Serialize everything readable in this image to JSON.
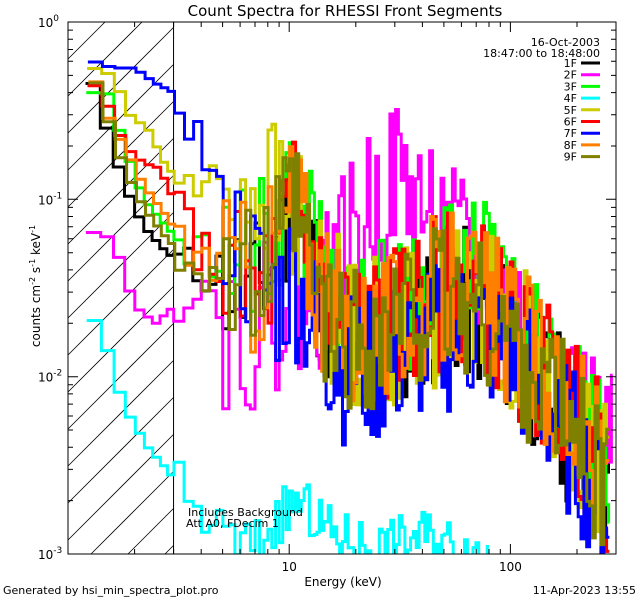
{
  "chart_data": {
    "type": "line",
    "title": "Count Spectra for RHESSI Front Segments",
    "xlabel": "Energy (keV)",
    "ylabel_parts": [
      "counts cm",
      "-2",
      " s",
      "-1",
      " keV",
      "-1"
    ],
    "xscale": "log",
    "yscale": "log",
    "xlim": [
      1.0,
      300.0
    ],
    "ylim": [
      0.001,
      1.0
    ],
    "x_ticks": [
      {
        "value": 10,
        "label": "10"
      },
      {
        "value": 100,
        "label": "100"
      }
    ],
    "y_ticks": [
      {
        "value": 0.001,
        "base": "10",
        "exp": "-3"
      },
      {
        "value": 0.01,
        "base": "10",
        "exp": "-2"
      },
      {
        "value": 0.1,
        "base": "10",
        "exp": "-1"
      },
      {
        "value": 1.0,
        "base": "10",
        "exp": "0"
      }
    ],
    "attenuator_shade_max_kev": 3.0,
    "date": "16-Oct-2003",
    "time_range": "18:47:00 to 18:48:00",
    "annotations": [
      "Includes Background",
      "Att A0, FDecim 1"
    ],
    "legend_position": "top-right",
    "series": [
      {
        "name": "1F",
        "color": "#000000",
        "seed": 11,
        "anchors": [
          [
            1.3,
            0.45
          ],
          [
            1.5,
            0.25
          ],
          [
            1.8,
            0.12
          ],
          [
            2.2,
            0.07
          ],
          [
            2.8,
            0.05
          ],
          [
            3.5,
            0.04
          ],
          [
            5,
            0.04
          ],
          [
            7,
            0.03
          ],
          [
            9,
            0.06
          ],
          [
            10.5,
            0.11
          ],
          [
            12,
            0.06
          ],
          [
            15,
            0.025
          ],
          [
            20,
            0.02
          ],
          [
            28,
            0.02
          ],
          [
            40,
            0.025
          ],
          [
            55,
            0.03
          ],
          [
            75,
            0.025
          ],
          [
            100,
            0.018
          ],
          [
            140,
            0.01
          ],
          [
            200,
            0.005
          ],
          [
            280,
            0.0025
          ]
        ]
      },
      {
        "name": "2F",
        "color": "#ff00ff",
        "seed": 22,
        "anchors": [
          [
            1.3,
            0.065
          ],
          [
            1.6,
            0.06
          ],
          [
            2.0,
            0.025
          ],
          [
            2.5,
            0.02
          ],
          [
            3.0,
            0.025
          ],
          [
            4,
            0.04
          ],
          [
            5,
            0.02
          ],
          [
            7,
            0.02
          ],
          [
            10,
            0.03
          ],
          [
            13,
            0.03
          ],
          [
            17,
            0.05
          ],
          [
            22,
            0.09
          ],
          [
            26,
            0.12
          ],
          [
            30,
            0.15
          ],
          [
            40,
            0.1
          ],
          [
            55,
            0.06
          ],
          [
            75,
            0.04
          ],
          [
            100,
            0.025
          ],
          [
            140,
            0.015
          ],
          [
            200,
            0.007
          ],
          [
            250,
            0.005
          ],
          [
            290,
            0.004
          ]
        ]
      },
      {
        "name": "3F",
        "color": "#00ff00",
        "seed": 33,
        "anchors": [
          [
            1.3,
            0.4
          ],
          [
            1.5,
            0.4
          ],
          [
            1.8,
            0.2
          ],
          [
            2.2,
            0.1
          ],
          [
            2.8,
            0.07
          ],
          [
            3.5,
            0.05
          ],
          [
            5,
            0.05
          ],
          [
            7,
            0.05
          ],
          [
            9,
            0.08
          ],
          [
            10.5,
            0.14
          ],
          [
            12,
            0.07
          ],
          [
            15,
            0.03
          ],
          [
            20,
            0.025
          ],
          [
            28,
            0.025
          ],
          [
            40,
            0.035
          ],
          [
            55,
            0.045
          ],
          [
            75,
            0.04
          ],
          [
            100,
            0.025
          ],
          [
            140,
            0.015
          ],
          [
            200,
            0.008
          ],
          [
            280,
            0.004
          ]
        ]
      },
      {
        "name": "4F",
        "color": "#00ffff",
        "seed": 44,
        "anchors": [
          [
            1.3,
            0.021
          ],
          [
            1.45,
            0.018
          ],
          [
            1.6,
            0.01
          ],
          [
            1.9,
            0.006
          ],
          [
            2.3,
            0.004
          ],
          [
            2.8,
            0.003
          ],
          [
            3.5,
            0.002
          ],
          [
            4.5,
            0.0015
          ],
          [
            6,
            0.0011
          ],
          [
            7.5,
            0.0012
          ],
          [
            9,
            0.0016
          ],
          [
            11,
            0.002
          ],
          [
            13,
            0.0016
          ],
          [
            16,
            0.0013
          ],
          [
            20,
            0.0012
          ],
          [
            26,
            0.0011
          ],
          [
            32,
            0.0012
          ],
          [
            40,
            0.0013
          ],
          [
            50,
            0.0012
          ],
          [
            60,
            0.0011
          ],
          [
            70,
            0.00105
          ],
          [
            80,
            0.001
          ]
        ]
      },
      {
        "name": "5F",
        "color": "#cccc00",
        "seed": 55,
        "anchors": [
          [
            1.3,
            0.55
          ],
          [
            1.6,
            0.5
          ],
          [
            1.9,
            0.3
          ],
          [
            2.3,
            0.25
          ],
          [
            2.8,
            0.15
          ],
          [
            3.5,
            0.12
          ],
          [
            4.5,
            0.12
          ],
          [
            5.5,
            0.14
          ],
          [
            7,
            0.12
          ],
          [
            8,
            0.14
          ],
          [
            9,
            0.1
          ],
          [
            10.5,
            0.09
          ],
          [
            12,
            0.06
          ],
          [
            15,
            0.03
          ],
          [
            20,
            0.02
          ],
          [
            28,
            0.02
          ],
          [
            40,
            0.025
          ],
          [
            55,
            0.03
          ],
          [
            75,
            0.028
          ],
          [
            100,
            0.02
          ],
          [
            140,
            0.012
          ],
          [
            200,
            0.006
          ],
          [
            280,
            0.003
          ]
        ]
      },
      {
        "name": "6F",
        "color": "#ff0000",
        "seed": 66,
        "anchors": [
          [
            1.3,
            0.45
          ],
          [
            1.5,
            0.35
          ],
          [
            1.8,
            0.2
          ],
          [
            2.2,
            0.16
          ],
          [
            2.6,
            0.15
          ],
          [
            3.0,
            0.1
          ],
          [
            4,
            0.05
          ],
          [
            5,
            0.04
          ],
          [
            7,
            0.03
          ],
          [
            9,
            0.05
          ],
          [
            10.5,
            0.1
          ],
          [
            12,
            0.06
          ],
          [
            15,
            0.025
          ],
          [
            20,
            0.02
          ],
          [
            28,
            0.02
          ],
          [
            40,
            0.03
          ],
          [
            55,
            0.035
          ],
          [
            75,
            0.03
          ],
          [
            100,
            0.02
          ],
          [
            140,
            0.012
          ],
          [
            200,
            0.006
          ],
          [
            280,
            0.003
          ]
        ]
      },
      {
        "name": "7F",
        "color": "#0000ff",
        "seed": 77,
        "anchors": [
          [
            1.3,
            0.6
          ],
          [
            1.6,
            0.55
          ],
          [
            2.0,
            0.55
          ],
          [
            2.5,
            0.45
          ],
          [
            3.0,
            0.4
          ],
          [
            3.5,
            0.3
          ],
          [
            4,
            0.2
          ],
          [
            5,
            0.09
          ],
          [
            6,
            0.06
          ],
          [
            7,
            0.04
          ],
          [
            9,
            0.03
          ],
          [
            10.5,
            0.04
          ],
          [
            13,
            0.02
          ],
          [
            18,
            0.012
          ],
          [
            25,
            0.012
          ],
          [
            35,
            0.015
          ],
          [
            50,
            0.018
          ],
          [
            70,
            0.02
          ],
          [
            100,
            0.015
          ],
          [
            140,
            0.008
          ],
          [
            200,
            0.004
          ],
          [
            280,
            0.002
          ]
        ]
      },
      {
        "name": "8F",
        "color": "#ff8000",
        "seed": 88,
        "anchors": [
          [
            1.3,
            0.5
          ],
          [
            1.5,
            0.3
          ],
          [
            1.8,
            0.2
          ],
          [
            2.2,
            0.12
          ],
          [
            2.8,
            0.08
          ],
          [
            3.5,
            0.05
          ],
          [
            5,
            0.045
          ],
          [
            7,
            0.04
          ],
          [
            9,
            0.07
          ],
          [
            10.5,
            0.12
          ],
          [
            12,
            0.065
          ],
          [
            15,
            0.025
          ],
          [
            20,
            0.02
          ],
          [
            28,
            0.02
          ],
          [
            40,
            0.03
          ],
          [
            55,
            0.035
          ],
          [
            75,
            0.03
          ],
          [
            100,
            0.02
          ],
          [
            140,
            0.012
          ],
          [
            200,
            0.006
          ],
          [
            280,
            0.003
          ]
        ]
      },
      {
        "name": "9F",
        "color": "#808000",
        "seed": 99,
        "anchors": [
          [
            1.3,
            0.5
          ],
          [
            1.5,
            0.3
          ],
          [
            1.8,
            0.15
          ],
          [
            2.2,
            0.09
          ],
          [
            2.8,
            0.06
          ],
          [
            3.5,
            0.045
          ],
          [
            5,
            0.04
          ],
          [
            7,
            0.035
          ],
          [
            9,
            0.06
          ],
          [
            10.5,
            0.1
          ],
          [
            12,
            0.05
          ],
          [
            15,
            0.02
          ],
          [
            20,
            0.018
          ],
          [
            28,
            0.02
          ],
          [
            40,
            0.028
          ],
          [
            55,
            0.03
          ],
          [
            75,
            0.025
          ],
          [
            100,
            0.018
          ],
          [
            140,
            0.01
          ],
          [
            200,
            0.005
          ],
          [
            280,
            0.0025
          ]
        ]
      }
    ]
  },
  "footer": {
    "generated_by": "Generated by hsi_min_spectra_plot.pro",
    "date": "11-Apr-2023 13:55"
  }
}
